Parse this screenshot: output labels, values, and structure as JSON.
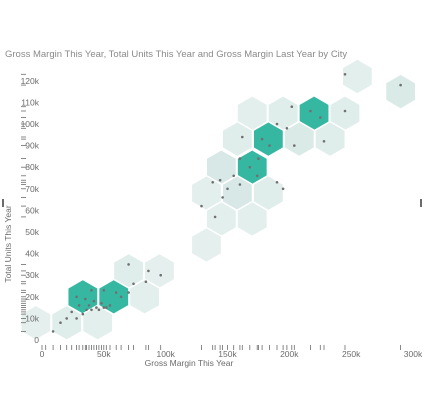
{
  "chart_data": {
    "type": "hexbin",
    "title": "Gross Margin This Year, Total Units This Year and Gross Margin Last Year by City",
    "xlabel": "Gross Margin This Year",
    "ylabel": "Total Units This Year",
    "xlim": [
      0,
      300000
    ],
    "ylim": [
      0,
      125000
    ],
    "x_ticks": [
      "0",
      "50k",
      "100k",
      "150k",
      "200k",
      "250k",
      "300k"
    ],
    "x_tick_values": [
      0,
      50000,
      100000,
      150000,
      200000,
      250000,
      300000
    ],
    "y_ticks": [
      "0",
      "10k",
      "20k",
      "30k",
      "40k",
      "50k",
      "60k",
      "70k",
      "80k",
      "90k",
      "100k",
      "110k",
      "120k"
    ],
    "y_tick_values": [
      0,
      10000,
      20000,
      30000,
      40000,
      50000,
      60000,
      70000,
      80000,
      90000,
      100000,
      110000,
      120000
    ],
    "colors": {
      "strong": "#2bb39d",
      "light": "#c3ddd9",
      "point": "#707070"
    },
    "hexbins": [
      {
        "x": 255000,
        "y": 122000,
        "intensity": 0.15
      },
      {
        "x": 290000,
        "y": 115000,
        "intensity": 0.3
      },
      {
        "x": 170000,
        "y": 105000,
        "intensity": 0.15
      },
      {
        "x": 195000,
        "y": 105000,
        "intensity": 0.2
      },
      {
        "x": 220000,
        "y": 105000,
        "intensity": 0.85
      },
      {
        "x": 245000,
        "y": 105000,
        "intensity": 0.2
      },
      {
        "x": 158000,
        "y": 93000,
        "intensity": 0.2
      },
      {
        "x": 183000,
        "y": 93000,
        "intensity": 0.85
      },
      {
        "x": 208000,
        "y": 93000,
        "intensity": 0.3
      },
      {
        "x": 233000,
        "y": 93000,
        "intensity": 0.2
      },
      {
        "x": 145000,
        "y": 80000,
        "intensity": 0.35
      },
      {
        "x": 170000,
        "y": 80000,
        "intensity": 0.85
      },
      {
        "x": 158000,
        "y": 68000,
        "intensity": 0.35
      },
      {
        "x": 183000,
        "y": 68000,
        "intensity": 0.2
      },
      {
        "x": 133000,
        "y": 68000,
        "intensity": 0.15
      },
      {
        "x": 145000,
        "y": 56000,
        "intensity": 0.15
      },
      {
        "x": 170000,
        "y": 56000,
        "intensity": 0.15
      },
      {
        "x": 133000,
        "y": 44000,
        "intensity": 0.1
      },
      {
        "x": 70000,
        "y": 32000,
        "intensity": 0.2
      },
      {
        "x": 95000,
        "y": 32000,
        "intensity": 0.1
      },
      {
        "x": 33000,
        "y": 20000,
        "intensity": 0.85
      },
      {
        "x": 58000,
        "y": 20000,
        "intensity": 0.85
      },
      {
        "x": 83000,
        "y": 20000,
        "intensity": 0.15
      },
      {
        "x": 20000,
        "y": 8000,
        "intensity": 0.2
      },
      {
        "x": 45000,
        "y": 8000,
        "intensity": 0.15
      },
      {
        "x": -5000,
        "y": 8000,
        "intensity": 0.1
      }
    ],
    "points": [
      [
        245000,
        123000
      ],
      [
        290000,
        118000
      ],
      [
        202000,
        108000
      ],
      [
        217000,
        106000
      ],
      [
        225000,
        103000
      ],
      [
        245000,
        106000
      ],
      [
        190000,
        100000
      ],
      [
        198000,
        98000
      ],
      [
        178000,
        93000
      ],
      [
        184000,
        90000
      ],
      [
        204000,
        90000
      ],
      [
        228000,
        92000
      ],
      [
        162000,
        94000
      ],
      [
        160000,
        84000
      ],
      [
        175000,
        84000
      ],
      [
        168000,
        80000
      ],
      [
        174000,
        76000
      ],
      [
        138000,
        73000
      ],
      [
        144000,
        74000
      ],
      [
        155000,
        76000
      ],
      [
        160000,
        72000
      ],
      [
        150000,
        70000
      ],
      [
        190000,
        73000
      ],
      [
        195000,
        70000
      ],
      [
        146000,
        66000
      ],
      [
        129000,
        62000
      ],
      [
        140000,
        57000
      ],
      [
        70000,
        35000
      ],
      [
        86000,
        32000
      ],
      [
        96000,
        30000
      ],
      [
        74000,
        26000
      ],
      [
        84000,
        27000
      ],
      [
        40000,
        23000
      ],
      [
        50000,
        23000
      ],
      [
        60000,
        22000
      ],
      [
        64000,
        20000
      ],
      [
        70000,
        22000
      ],
      [
        28000,
        20000
      ],
      [
        35000,
        19000
      ],
      [
        42000,
        18000
      ],
      [
        48000,
        17000
      ],
      [
        55000,
        16000
      ],
      [
        30000,
        16000
      ],
      [
        38000,
        16000
      ],
      [
        44000,
        15000
      ],
      [
        50000,
        15000
      ],
      [
        24000,
        13000
      ],
      [
        20000,
        10000
      ],
      [
        28000,
        10000
      ],
      [
        33000,
        12000
      ],
      [
        15000,
        8000
      ],
      [
        9000,
        4000
      ],
      [
        36000,
        14000
      ],
      [
        40000,
        14000
      ],
      [
        46000,
        14000
      ],
      [
        52000,
        15000
      ]
    ],
    "rug_x": [
      0,
      3000,
      9000,
      15000,
      20000,
      24000,
      28000,
      30000,
      33000,
      35000,
      36000,
      38000,
      40000,
      42000,
      44000,
      46000,
      48000,
      50000,
      52000,
      55000,
      60000,
      64000,
      70000,
      74000,
      84000,
      86000,
      96000,
      129000,
      138000,
      140000,
      144000,
      146000,
      150000,
      155000,
      160000,
      162000,
      168000,
      174000,
      175000,
      178000,
      184000,
      190000,
      195000,
      198000,
      202000,
      204000,
      217000,
      225000,
      228000,
      245000,
      290000
    ],
    "rug_y": [
      4000,
      8000,
      10000,
      12000,
      13000,
      14000,
      15000,
      16000,
      17000,
      18000,
      19000,
      20000,
      22000,
      23000,
      26000,
      27000,
      30000,
      32000,
      35000,
      57000,
      62000,
      66000,
      70000,
      72000,
      73000,
      74000,
      76000,
      80000,
      84000,
      90000,
      93000,
      94000,
      98000,
      100000,
      103000,
      106000,
      108000,
      118000,
      123000
    ]
  }
}
